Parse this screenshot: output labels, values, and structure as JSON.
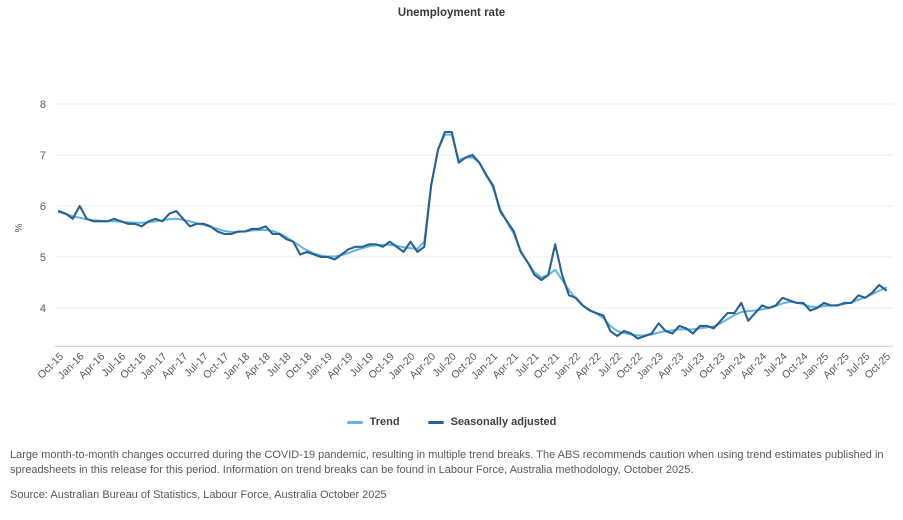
{
  "chart_data": {
    "type": "line",
    "title": "Unemployment rate",
    "ylabel": "%",
    "ylim": [
      3.25,
      8.4
    ],
    "yticks": [
      4,
      5,
      6,
      7,
      8
    ],
    "grid": true,
    "legend_position": "bottom",
    "months_per_tick": 3,
    "x_tick_labels": [
      "Oct-15",
      "Jan-16",
      "Apr-16",
      "Jul-16",
      "Oct-16",
      "Jan-17",
      "Apr-17",
      "Jul-17",
      "Oct-17",
      "Jan-18",
      "Apr-18",
      "Jul-18",
      "Oct-18",
      "Jan-19",
      "Apr-19",
      "Jul-19",
      "Oct-19",
      "Jan-20",
      "Apr-20",
      "Jul-20",
      "Oct-20",
      "Jan-21",
      "Apr-21",
      "Jul-21",
      "Oct-21",
      "Jan-22",
      "Apr-22",
      "Jul-22",
      "Oct-22",
      "Jan-23",
      "Apr-23",
      "Jul-23",
      "Oct-23",
      "Jan-24",
      "Apr-24",
      "Jul-24",
      "Oct-24",
      "Jan-25",
      "Apr-25",
      "Jul-25",
      "Oct-25"
    ],
    "series": [
      {
        "name": "Trend",
        "color": "#5fb5e6",
        "values": [
          5.88,
          5.84,
          5.8,
          5.77,
          5.74,
          5.72,
          5.71,
          5.7,
          5.7,
          5.69,
          5.68,
          5.67,
          5.67,
          5.68,
          5.7,
          5.72,
          5.74,
          5.75,
          5.73,
          5.7,
          5.66,
          5.63,
          5.59,
          5.55,
          5.51,
          5.49,
          5.49,
          5.5,
          5.52,
          5.53,
          5.53,
          5.51,
          5.46,
          5.39,
          5.3,
          5.21,
          5.13,
          5.07,
          5.03,
          5.01,
          5.01,
          5.04,
          5.08,
          5.13,
          5.17,
          5.21,
          5.23,
          5.24,
          5.24,
          5.22,
          5.19,
          5.17,
          5.16,
          5.3,
          6.4,
          7.1,
          7.4,
          7.4,
          6.9,
          6.95,
          6.95,
          6.85,
          6.62,
          6.35,
          5.95,
          5.68,
          5.45,
          5.12,
          4.9,
          4.7,
          4.6,
          4.65,
          4.75,
          4.55,
          4.35,
          4.18,
          4.05,
          3.96,
          3.89,
          3.8,
          3.65,
          3.55,
          3.51,
          3.48,
          3.46,
          3.46,
          3.48,
          3.52,
          3.55,
          3.56,
          3.58,
          3.58,
          3.58,
          3.6,
          3.62,
          3.64,
          3.7,
          3.78,
          3.86,
          3.92,
          3.94,
          3.95,
          3.97,
          4.0,
          4.04,
          4.09,
          4.12,
          4.11,
          4.07,
          4.03,
          4.02,
          4.04,
          4.05,
          4.06,
          4.08,
          4.11,
          4.16,
          4.21,
          4.27,
          4.34,
          4.4
        ]
      },
      {
        "name": "Seasonally adjusted",
        "color": "#2a618e",
        "values": [
          5.9,
          5.85,
          5.75,
          6.0,
          5.75,
          5.7,
          5.7,
          5.7,
          5.75,
          5.7,
          5.65,
          5.65,
          5.6,
          5.7,
          5.75,
          5.7,
          5.85,
          5.9,
          5.75,
          5.6,
          5.65,
          5.65,
          5.6,
          5.5,
          5.45,
          5.45,
          5.5,
          5.5,
          5.55,
          5.55,
          5.6,
          5.45,
          5.45,
          5.35,
          5.3,
          5.05,
          5.1,
          5.05,
          5.0,
          5.0,
          4.95,
          5.05,
          5.15,
          5.2,
          5.2,
          5.25,
          5.25,
          5.2,
          5.3,
          5.2,
          5.1,
          5.3,
          5.1,
          5.2,
          6.4,
          7.1,
          7.45,
          7.45,
          6.85,
          6.95,
          7.0,
          6.85,
          6.6,
          6.4,
          5.9,
          5.7,
          5.5,
          5.1,
          4.9,
          4.65,
          4.55,
          4.65,
          5.25,
          4.65,
          4.25,
          4.2,
          4.05,
          3.95,
          3.9,
          3.85,
          3.55,
          3.45,
          3.55,
          3.5,
          3.4,
          3.45,
          3.5,
          3.7,
          3.55,
          3.5,
          3.65,
          3.6,
          3.5,
          3.65,
          3.65,
          3.6,
          3.75,
          3.9,
          3.9,
          4.1,
          3.75,
          3.9,
          4.05,
          4.0,
          4.05,
          4.2,
          4.15,
          4.1,
          4.1,
          3.95,
          4.0,
          4.1,
          4.05,
          4.05,
          4.1,
          4.1,
          4.25,
          4.2,
          4.3,
          4.45,
          4.35
        ]
      }
    ]
  },
  "notes": {
    "trend_note": "Large month-to-month changes occurred during the COVID-19 pandemic, resulting in multiple trend breaks. The ABS recommends caution when using trend estimates published in spreadsheets in this release for this period. Information on trend breaks can be found in Labour Force, Australia methodology, October 2025.",
    "source": "Source: Australian Bureau of Statistics, Labour Force, Australia October 2025"
  },
  "colors": {
    "gridline": "#ececec",
    "axis_line": "#ccd5e2",
    "tick_text": "#595959",
    "title_text": "#3a3a3a"
  }
}
